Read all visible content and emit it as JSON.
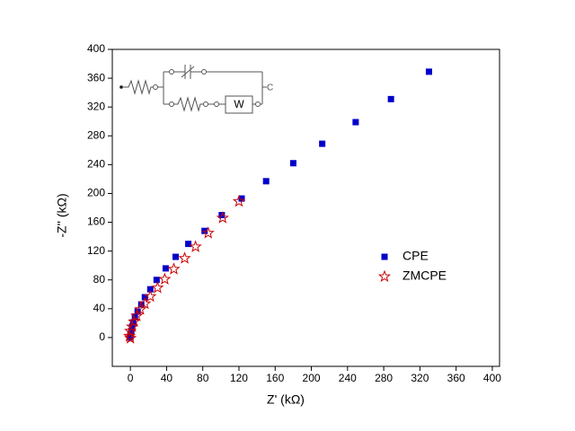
{
  "chart_data": {
    "type": "scatter",
    "x_label": "Z' (kΩ)",
    "y_label": "-Z'' (kΩ)",
    "xlim": [
      -20,
      408
    ],
    "ylim": [
      -40,
      400
    ],
    "xticks": [
      0,
      40,
      80,
      120,
      160,
      200,
      240,
      280,
      320,
      360,
      400
    ],
    "yticks": [
      0,
      40,
      80,
      120,
      160,
      200,
      240,
      280,
      320,
      360,
      400
    ],
    "legend": "center right",
    "annotations": [
      "W",
      "C"
    ],
    "series": [
      {
        "name": "CPE",
        "color": "#0000cc",
        "marker": "square",
        "x": [
          330,
          288,
          249,
          212,
          180,
          150,
          123,
          101,
          82,
          64,
          50,
          39,
          29,
          22,
          16,
          12,
          8,
          5,
          3,
          2,
          1,
          0,
          0
        ],
        "values": [
          369,
          331,
          299,
          269,
          242,
          217,
          193,
          170,
          148,
          130,
          112,
          96,
          80,
          67,
          56,
          46,
          36,
          29,
          21,
          15,
          9,
          4,
          0
        ]
      },
      {
        "name": "ZMCPE",
        "color": "#cc0000",
        "marker": "star",
        "x": [
          120,
          102,
          86,
          72,
          60,
          48,
          38,
          30,
          22,
          16,
          11,
          7,
          4,
          2,
          0,
          -1,
          0
        ],
        "values": [
          189,
          166,
          145,
          126,
          110,
          95,
          81,
          69,
          57,
          47,
          39,
          30,
          22,
          15,
          9,
          2,
          -1
        ]
      }
    ]
  }
}
